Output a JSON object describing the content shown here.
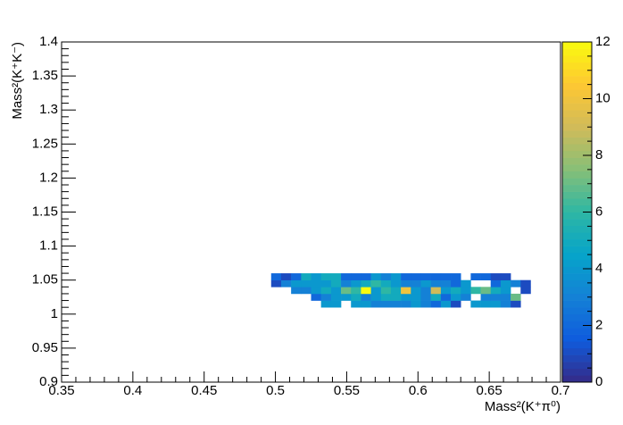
{
  "chart_data": {
    "type": "heatmap",
    "x_label": "Mass²(K⁺π⁰)",
    "y_label": "Mass²(K⁺K⁻)",
    "xlim": [
      0.35,
      0.7
    ],
    "xticks": [
      0.35,
      0.4,
      0.45,
      0.5,
      0.55,
      0.6,
      0.65,
      0.7
    ],
    "ylim": [
      0.9,
      1.4
    ],
    "yticks": [
      0.9,
      0.95,
      1,
      1.05,
      1.1,
      1.15,
      1.2,
      1.25,
      1.3,
      1.35,
      1.4
    ],
    "zlim": [
      0,
      12
    ],
    "zticks": [
      0,
      2,
      4,
      6,
      8,
      10,
      12
    ],
    "colors": [
      "#352a87",
      "#0f5cdd",
      "#1481d6",
      "#06a4ca",
      "#2eb7a4",
      "#87bf77",
      "#d1bb59",
      "#fec832",
      "#f9fb0e"
    ],
    "x_edges": [
      0.497,
      0.504,
      0.511,
      0.518,
      0.525,
      0.532,
      0.539,
      0.546,
      0.553,
      0.56,
      0.567,
      0.574,
      0.581,
      0.588,
      0.595,
      0.602,
      0.609,
      0.616,
      0.623,
      0.63,
      0.637,
      0.644,
      0.651,
      0.658,
      0.665,
      0.672,
      0.679,
      0.686
    ],
    "y_edges": [
      1.01,
      1.02,
      1.03,
      1.04,
      1.05,
      1.06
    ],
    "z": [
      [
        null,
        null,
        null,
        null,
        null,
        4,
        4,
        null,
        4,
        4,
        3,
        3,
        3,
        3,
        4,
        3,
        2,
        4,
        1,
        null,
        4,
        4,
        4,
        3,
        1,
        null,
        null
      ],
      [
        null,
        null,
        null,
        null,
        2,
        3,
        4,
        4,
        5,
        3,
        4,
        5,
        5,
        4,
        4,
        3,
        5,
        2,
        4,
        3,
        null,
        3,
        3,
        3,
        7,
        null,
        null
      ],
      [
        null,
        null,
        3,
        3,
        4,
        5,
        4,
        7,
        6,
        12,
        4,
        6,
        5,
        10,
        4,
        3,
        9,
        4,
        5,
        4,
        6,
        7,
        5,
        4,
        null,
        1,
        null
      ],
      [
        1,
        3,
        4,
        4,
        4,
        4,
        5,
        3,
        4,
        5,
        6,
        5,
        4,
        3,
        3,
        4,
        3,
        3,
        2,
        4,
        null,
        null,
        2,
        4,
        3,
        1,
        null
      ],
      [
        2,
        1,
        2,
        5,
        4,
        5,
        5,
        2,
        2,
        2,
        4,
        3,
        4,
        2,
        2,
        2,
        2,
        2,
        2,
        null,
        2,
        2,
        1,
        1,
        null,
        null,
        null
      ]
    ]
  }
}
